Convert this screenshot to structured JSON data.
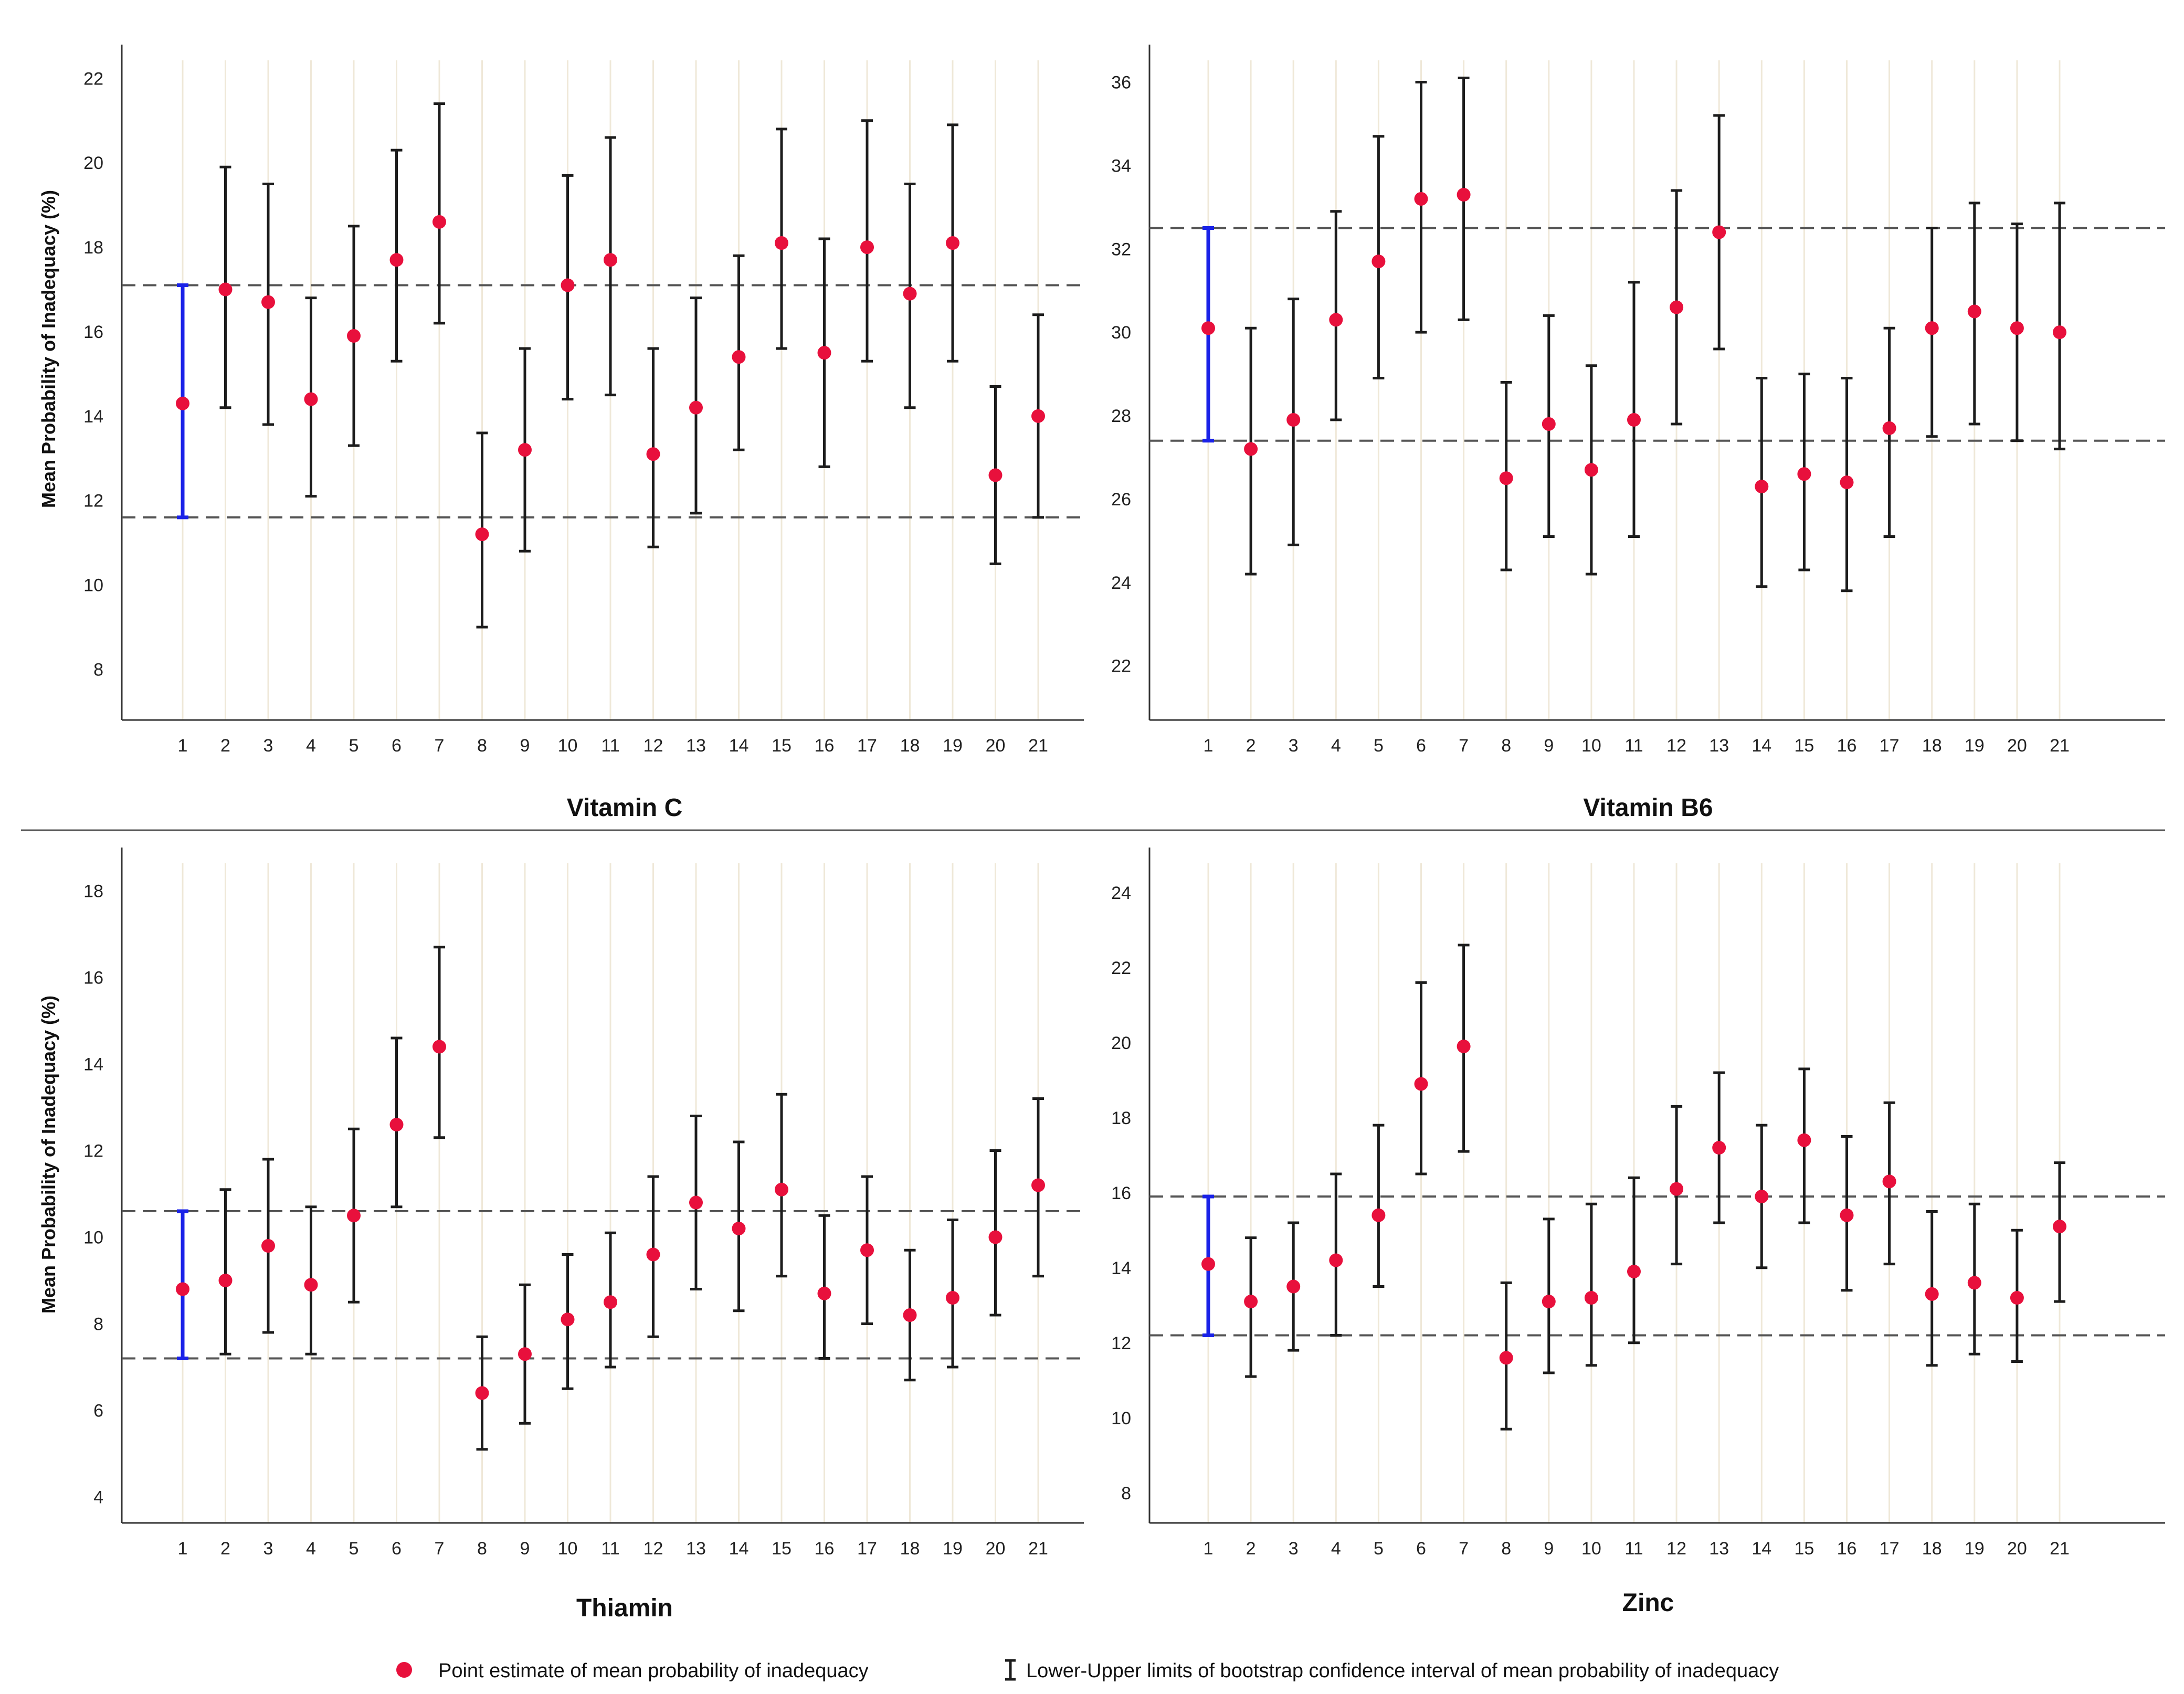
{
  "legend": {
    "point_label": "Point estimate of mean probability of inadequacy",
    "ci_label": "Lower-Upper limits of bootstrap confidence interval of mean probability of inadequacy"
  },
  "colors": {
    "point": "#e8103c",
    "ci": "#1c1c1c",
    "reference_ci": "#1a22e8",
    "dashed_line": "#555555",
    "gridline": "#efe8d8",
    "axis": "#333333"
  },
  "chart_data": [
    {
      "type": "scatter",
      "title": "Vitamin C",
      "ylabel": "Mean Probability of Inadequacy (%)",
      "xlabel": "",
      "x": [
        1,
        2,
        3,
        4,
        5,
        6,
        7,
        8,
        9,
        10,
        11,
        12,
        13,
        14,
        15,
        16,
        17,
        18,
        19,
        20,
        21
      ],
      "ylim": [
        6.8,
        22.8
      ],
      "yticks": [
        8,
        10,
        12,
        14,
        16,
        18,
        20,
        22
      ],
      "grid": "vertical",
      "series": [
        {
          "point": [
            14.3,
            17.0,
            16.7,
            14.4,
            15.9,
            17.7,
            18.6,
            11.2,
            13.2,
            17.1,
            17.7,
            13.1,
            14.2,
            15.4,
            18.1,
            15.5,
            18.0,
            16.9,
            18.1,
            12.6,
            14.0
          ],
          "lower": [
            11.6,
            14.2,
            13.8,
            12.1,
            13.3,
            15.3,
            16.2,
            9.0,
            10.8,
            14.4,
            14.5,
            10.9,
            11.7,
            13.2,
            15.6,
            12.8,
            15.3,
            14.2,
            15.3,
            10.5,
            11.6
          ],
          "upper": [
            17.1,
            19.9,
            19.5,
            16.8,
            18.5,
            20.3,
            21.4,
            13.6,
            15.6,
            19.7,
            20.6,
            15.6,
            16.8,
            17.8,
            20.8,
            18.2,
            21.0,
            19.5,
            20.9,
            14.7,
            16.4
          ]
        }
      ],
      "reference_lines": [
        17.1,
        11.6
      ]
    },
    {
      "type": "scatter",
      "title": "Vitamin B6",
      "ylabel": "",
      "xlabel": "",
      "x": [
        1,
        2,
        3,
        4,
        5,
        6,
        7,
        8,
        9,
        10,
        11,
        12,
        13,
        14,
        15,
        16,
        17,
        18,
        19,
        20,
        21
      ],
      "ylim": [
        20.7,
        36.9
      ],
      "yticks": [
        22,
        24,
        26,
        28,
        30,
        32,
        34,
        36
      ],
      "grid": "vertical",
      "series": [
        {
          "point": [
            30.1,
            27.2,
            27.9,
            30.3,
            31.7,
            33.2,
            33.3,
            26.5,
            27.8,
            26.7,
            27.9,
            30.6,
            32.4,
            26.3,
            26.6,
            26.4,
            27.7,
            30.1,
            30.5,
            30.1,
            30.0
          ],
          "lower": [
            27.4,
            24.2,
            24.9,
            27.9,
            28.9,
            30.0,
            30.3,
            24.3,
            25.1,
            24.2,
            25.1,
            27.8,
            29.6,
            23.9,
            24.3,
            23.8,
            25.1,
            27.5,
            27.8,
            27.4,
            27.2
          ],
          "upper": [
            32.5,
            30.1,
            30.8,
            32.9,
            34.7,
            36.0,
            36.1,
            28.8,
            30.4,
            29.2,
            31.2,
            33.4,
            35.2,
            28.9,
            29.0,
            28.9,
            30.1,
            32.5,
            33.1,
            32.6,
            33.1
          ]
        }
      ],
      "reference_lines": [
        32.5,
        27.4
      ]
    },
    {
      "type": "scatter",
      "title": "Thiamin",
      "ylabel": "Mean Probability of Inadequacy (%)",
      "xlabel": "",
      "x": [
        1,
        2,
        3,
        4,
        5,
        6,
        7,
        8,
        9,
        10,
        11,
        12,
        13,
        14,
        15,
        16,
        17,
        18,
        19,
        20,
        21
      ],
      "ylim": [
        3.4,
        19.0
      ],
      "yticks": [
        4,
        6,
        8,
        10,
        12,
        14,
        16,
        18
      ],
      "grid": "vertical",
      "series": [
        {
          "point": [
            8.8,
            9.0,
            9.8,
            8.9,
            10.5,
            12.6,
            14.4,
            6.4,
            7.3,
            8.1,
            8.5,
            9.6,
            10.8,
            10.2,
            11.1,
            8.7,
            9.7,
            8.2,
            8.6,
            10.0,
            11.2
          ],
          "lower": [
            7.2,
            7.3,
            7.8,
            7.3,
            8.5,
            10.7,
            12.3,
            5.1,
            5.7,
            6.5,
            7.0,
            7.7,
            8.8,
            8.3,
            9.1,
            7.2,
            8.0,
            6.7,
            7.0,
            8.2,
            9.1
          ],
          "upper": [
            10.6,
            11.1,
            11.8,
            10.7,
            12.5,
            14.6,
            16.7,
            7.7,
            8.9,
            9.6,
            10.1,
            11.4,
            12.8,
            12.2,
            13.3,
            10.5,
            11.4,
            9.7,
            10.4,
            12.0,
            13.2
          ]
        }
      ],
      "reference_lines": [
        10.6,
        7.2
      ]
    },
    {
      "type": "scatter",
      "title": "Zinc",
      "ylabel": "",
      "xlabel": "",
      "x": [
        1,
        2,
        3,
        4,
        5,
        6,
        7,
        8,
        9,
        10,
        11,
        12,
        13,
        14,
        15,
        16,
        17,
        18,
        19,
        20,
        21
      ],
      "ylim": [
        7.2,
        25.2
      ],
      "yticks": [
        8,
        10,
        12,
        14,
        16,
        18,
        20,
        22,
        24
      ],
      "grid": "vertical",
      "series": [
        {
          "point": [
            14.1,
            13.1,
            13.5,
            14.2,
            15.4,
            18.9,
            19.9,
            11.6,
            13.1,
            13.2,
            13.9,
            16.1,
            17.2,
            15.9,
            17.4,
            15.4,
            16.3,
            13.3,
            13.6,
            13.2,
            15.1
          ],
          "lower": [
            12.2,
            11.1,
            11.8,
            12.2,
            13.5,
            16.5,
            17.1,
            9.7,
            11.2,
            11.4,
            12.0,
            14.1,
            15.2,
            14.0,
            15.2,
            13.4,
            14.1,
            11.4,
            11.7,
            11.5,
            13.1
          ],
          "upper": [
            15.9,
            14.8,
            15.2,
            16.5,
            17.8,
            21.6,
            22.6,
            13.6,
            15.3,
            15.7,
            16.4,
            18.3,
            19.2,
            17.8,
            19.3,
            17.5,
            18.4,
            15.5,
            15.7,
            15.0,
            16.8
          ]
        }
      ],
      "reference_lines": [
        15.9,
        12.2
      ]
    }
  ]
}
